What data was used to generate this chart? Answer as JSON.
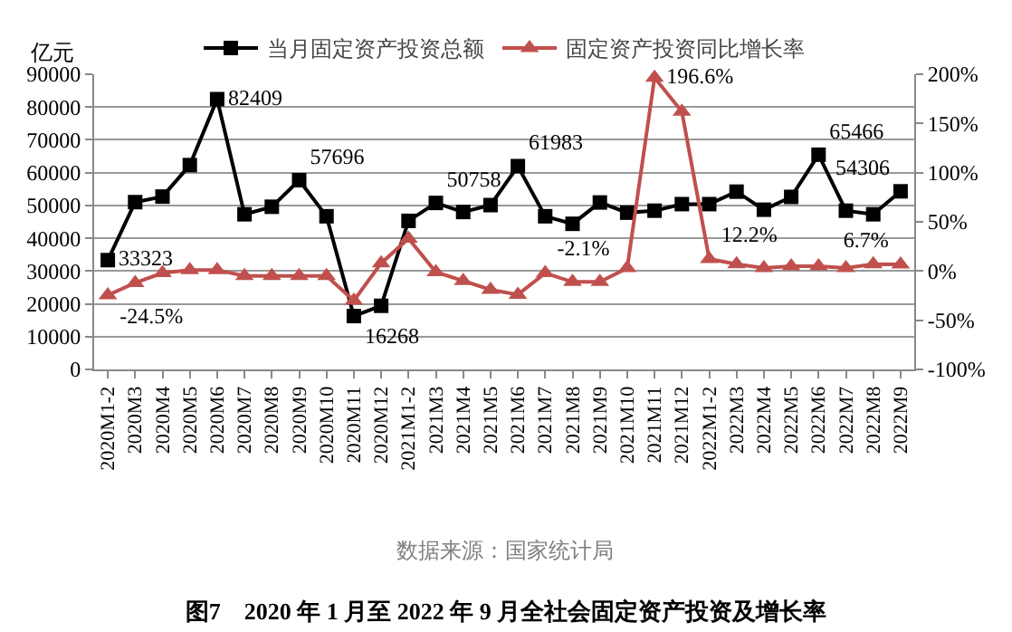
{
  "chart_data": {
    "type": "line",
    "title": "图7　2020 年 1 月至 2022 年 9 月全社会固定资产投资及增长率",
    "ylabel": "亿元",
    "annotations": [
      "数据来源：国家统计局"
    ],
    "categories": [
      "2020M1-2",
      "2020M3",
      "2020M4",
      "2020M5",
      "2020M6",
      "2020M7",
      "2020M8",
      "2020M9",
      "2020M10",
      "2020M11",
      "2020M12",
      "2021M1-2",
      "2021M3",
      "2021M4",
      "2021M5",
      "2021M6",
      "2021M7",
      "2021M8",
      "2021M9",
      "2021M10",
      "2021M11",
      "2021M12",
      "2022M1-2",
      "2022M3",
      "2022M4",
      "2022M5",
      "2022M6",
      "2022M7",
      "2022M8",
      "2022M9"
    ],
    "series": [
      {
        "name": "当月固定资产投资总额",
        "color": "#000000",
        "marker": "square",
        "values": [
          33323,
          51000,
          52700,
          62300,
          82409,
          47300,
          49600,
          57696,
          46700,
          16268,
          19400,
          45300,
          50758,
          48000,
          50100,
          61983,
          46700,
          44400,
          50900,
          47800,
          48400,
          50400,
          50400,
          54200,
          48700,
          52600,
          65466,
          48400,
          47300,
          54306
        ],
        "value_labels": [
          "33323",
          null,
          null,
          null,
          "82409",
          null,
          null,
          "57696",
          null,
          "16268",
          null,
          null,
          "50758",
          null,
          null,
          "61983",
          null,
          null,
          null,
          null,
          null,
          null,
          null,
          null,
          null,
          null,
          "65466",
          null,
          null,
          "54306"
        ]
      },
      {
        "name": "固定资产投资同比增长率",
        "color": "#c0504d",
        "marker": "triangle",
        "axis": "y2",
        "values": [
          -24.5,
          -12,
          -2,
          1,
          1,
          -5,
          -5,
          -5,
          -5,
          -30,
          8,
          33,
          -1,
          -10,
          -19,
          -24,
          -2.1,
          -11,
          -11,
          3,
          196.6,
          162,
          12.2,
          7,
          3,
          5,
          5,
          3,
          7,
          6.7
        ],
        "value_labels": [
          "-24.5%",
          null,
          null,
          null,
          null,
          null,
          null,
          null,
          null,
          null,
          null,
          null,
          null,
          null,
          null,
          null,
          "-2.1%",
          null,
          null,
          null,
          "196.6%",
          null,
          "12.2%",
          null,
          null,
          null,
          null,
          null,
          null,
          "6.7%"
        ]
      }
    ],
    "ylim": [
      0,
      90000
    ],
    "yticks": [
      0,
      10000,
      20000,
      30000,
      40000,
      50000,
      60000,
      70000,
      80000,
      90000
    ],
    "y2lim": [
      -100,
      200
    ],
    "y2ticks": [
      {
        "value": -100,
        "label": "-100%"
      },
      {
        "value": -50,
        "label": "-50%"
      },
      {
        "value": 0,
        "label": "0%"
      },
      {
        "value": 50,
        "label": "50%"
      },
      {
        "value": 100,
        "label": "100%"
      },
      {
        "value": 150,
        "label": "150%"
      },
      {
        "value": 200,
        "label": "200%"
      }
    ],
    "grid": "y",
    "legend": "top"
  }
}
